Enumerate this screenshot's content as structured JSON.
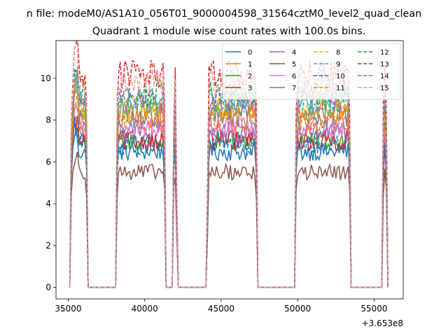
{
  "chart_data": {
    "type": "line",
    "suptitle": "n file: modeM0/AS1A10_056T01_9000004598_31564cztM0_level2_quad_clean",
    "title": "Quadrant 1 module wise count rates with 100.0s bins.",
    "xlabel": "",
    "ylabel": "",
    "x_offset_label": "+3.653e8",
    "xlim": [
      34200,
      56900
    ],
    "ylim": [
      -0.55,
      11.8
    ],
    "xticks": [
      35000,
      40000,
      45000,
      50000,
      55000
    ],
    "xtick_labels": [
      "35000",
      "40000",
      "45000",
      "50000",
      "55000"
    ],
    "yticks": [
      0,
      2,
      4,
      6,
      8,
      10
    ],
    "ytick_labels": [
      "0",
      "2",
      "4",
      "6",
      "8",
      "10"
    ],
    "grid": false,
    "legend": {
      "placement": "top-right",
      "columns": 4
    },
    "x_range": [
      35100,
      55900
    ],
    "bin_seconds": 100,
    "segments": [
      [
        35100,
        36300
      ],
      [
        38100,
        41400
      ],
      [
        41800,
        42150
      ],
      [
        44050,
        47400
      ],
      [
        49800,
        53500
      ],
      [
        55500,
        55900
      ]
    ],
    "series": [
      {
        "name": "0",
        "color": "#1f77b4",
        "dash": "solid",
        "level": 6.5
      },
      {
        "name": "1",
        "color": "#ff7f0e",
        "dash": "solid",
        "level": 8.5
      },
      {
        "name": "2",
        "color": "#2ca02c",
        "dash": "solid",
        "level": 7.0
      },
      {
        "name": "3",
        "color": "#d62728",
        "dash": "solid",
        "level": 7.0
      },
      {
        "name": "4",
        "color": "#9467bd",
        "dash": "solid",
        "level": 7.4
      },
      {
        "name": "5",
        "color": "#8c564b",
        "dash": "solid",
        "level": 5.5
      },
      {
        "name": "6",
        "color": "#e377c2",
        "dash": "solid",
        "level": 7.7
      },
      {
        "name": "7",
        "color": "#7f7f7f",
        "dash": "solid",
        "level": 8.2
      },
      {
        "name": "8",
        "color": "#bcbd22",
        "dash": "dashed",
        "level": 8.6
      },
      {
        "name": "9",
        "color": "#17becf",
        "dash": "dashed",
        "level": 8.9
      },
      {
        "name": "10",
        "color": "#1f77b4",
        "dash": "dashed",
        "level": 6.8
      },
      {
        "name": "11",
        "color": "#ff7f0e",
        "dash": "dashed",
        "level": 8.0
      },
      {
        "name": "12",
        "color": "#2ca02c",
        "dash": "dashed",
        "level": 9.3
      },
      {
        "name": "13",
        "color": "#d62728",
        "dash": "dashed",
        "level": 10.2
      },
      {
        "name": "14",
        "color": "#9467bd",
        "dash": "dashed",
        "level": 9.0
      },
      {
        "name": "15",
        "color": "#e8a09a",
        "dash": "dashed",
        "level": 9.8
      }
    ]
  }
}
